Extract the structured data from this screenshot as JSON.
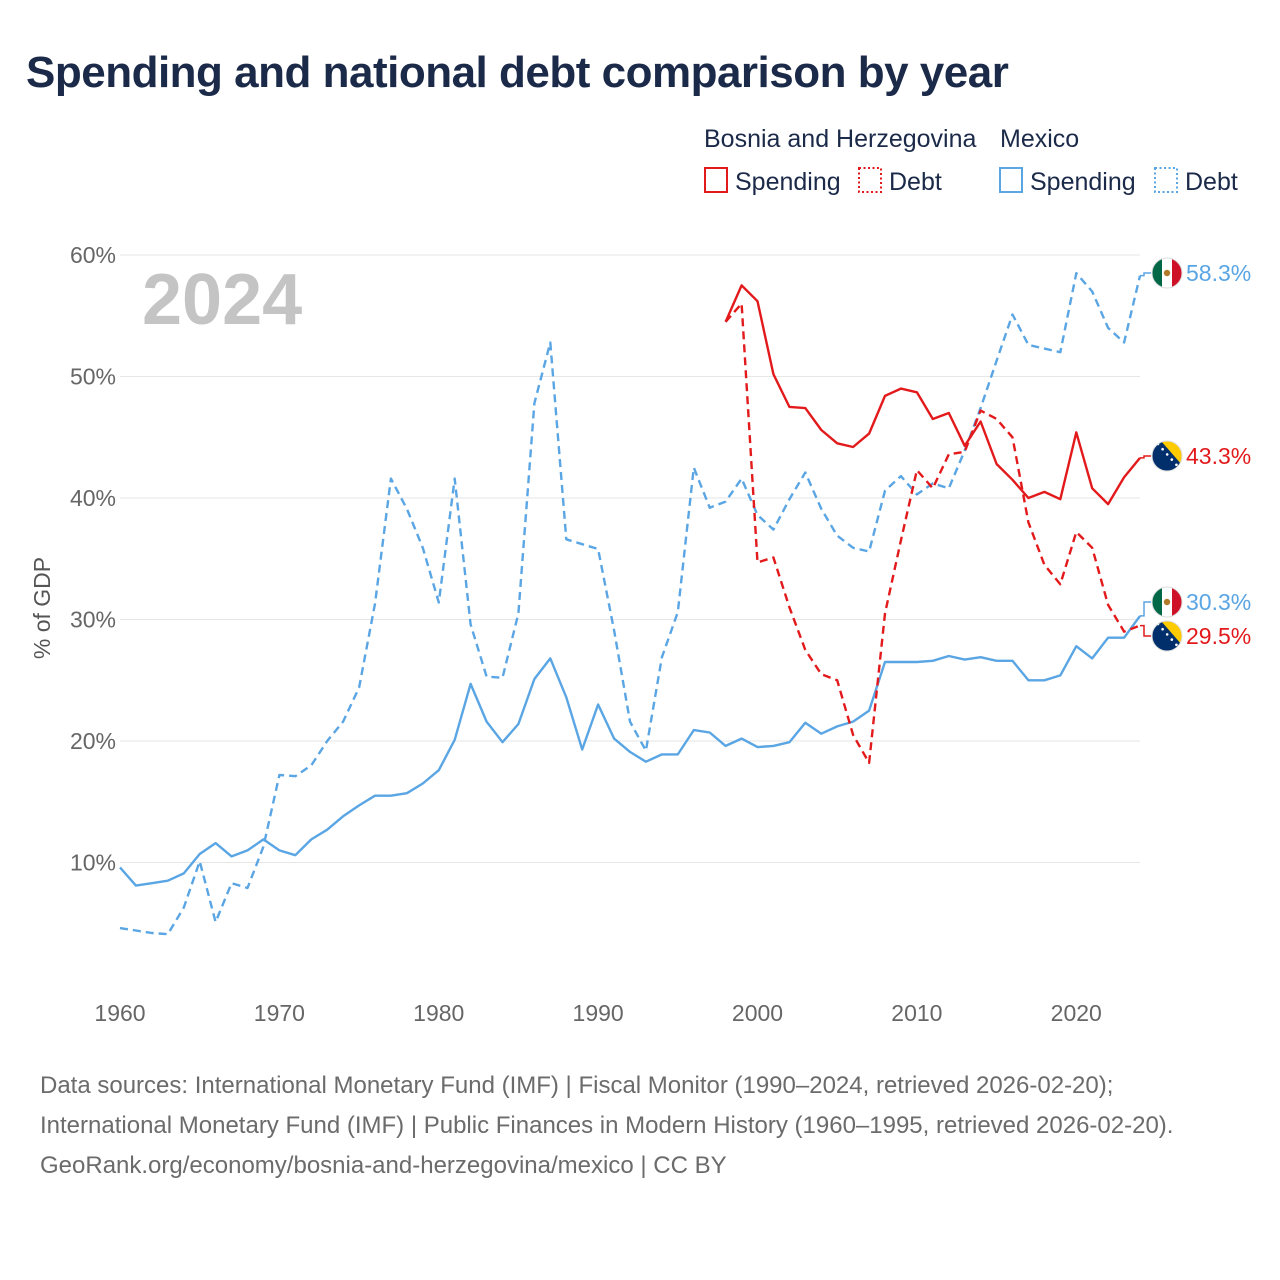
{
  "title": "Spending and national debt comparison by year",
  "year_label": "2024",
  "legend": {
    "group1": "Bosnia and Herzegovina",
    "group2": "Mexico",
    "spending": "Spending",
    "debt": "Debt"
  },
  "footer": {
    "sources": "Data sources: International Monetary Fund (IMF) | Fiscal Monitor (1990–2024, retrieved 2026-02-20); International Monetary Fund (IMF) | Public Finances in Modern History (1960–1995, retrieved 2026-02-20).",
    "credit": "GeoRank.org/economy/bosnia-and-herzegovina/mexico | CC BY"
  },
  "chart_data": {
    "type": "line",
    "ylabel": "% of GDP",
    "xlim": [
      1960,
      2024
    ],
    "ylim": [
      0,
      60
    ],
    "x_ticks": [
      1960,
      1970,
      1980,
      1990,
      2000,
      2010,
      2020
    ],
    "y_ticks": [
      10,
      20,
      30,
      40,
      50,
      60
    ],
    "y_tick_labels": [
      "10%",
      "20%",
      "30%",
      "40%",
      "50%",
      "60%"
    ],
    "colors": {
      "bih": "#e31a1c",
      "mex": "#5aa5e3"
    },
    "series": [
      {
        "name": "Mexico Spending",
        "country": "mex",
        "dash": false,
        "start_year": 1960,
        "end_label": "30.3%",
        "values": [
          9.6,
          8.1,
          8.3,
          8.5,
          9.1,
          10.7,
          11.6,
          10.5,
          11.0,
          11.9,
          11.0,
          10.6,
          11.9,
          12.7,
          13.8,
          14.7,
          15.5,
          15.5,
          15.7,
          16.5,
          17.6,
          20.1,
          24.7,
          21.6,
          19.9,
          21.4,
          25.1,
          26.8,
          23.6,
          19.3,
          23.0,
          20.2,
          19.1,
          18.3,
          18.9,
          18.9,
          20.9,
          20.7,
          19.6,
          20.2,
          19.5,
          19.6,
          19.9,
          21.5,
          20.6,
          21.2,
          21.6,
          22.5,
          26.5,
          26.5,
          26.5,
          26.6,
          27.0,
          26.7,
          26.9,
          26.6,
          26.6,
          25.0,
          25.0,
          25.4,
          27.8,
          26.8,
          28.5,
          28.5,
          30.3
        ]
      },
      {
        "name": "Mexico Debt",
        "country": "mex",
        "dash": true,
        "start_year": 1960,
        "end_label": "58.3%",
        "values": [
          4.6,
          4.4,
          4.2,
          4.1,
          6.3,
          10.1,
          5.1,
          8.3,
          7.9,
          11.3,
          17.2,
          17.1,
          18.0,
          20.0,
          21.6,
          24.4,
          31.3,
          41.6,
          39.1,
          35.9,
          31.4,
          41.6,
          29.6,
          25.3,
          25.2,
          30.5,
          47.8,
          52.8,
          36.6,
          36.2,
          35.8,
          29.1,
          21.6,
          19.2,
          26.9,
          30.6,
          42.5,
          39.2,
          39.7,
          41.6,
          38.6,
          37.4,
          39.9,
          42.1,
          39.1,
          36.9,
          35.9,
          35.6,
          40.6,
          41.8,
          40.3,
          41.2,
          40.8,
          43.9,
          47.4,
          51.3,
          55.1,
          52.6,
          52.3,
          52.0,
          58.5,
          57.0,
          54.0,
          52.8,
          58.3
        ]
      },
      {
        "name": "Bosnia and Herzegovina Spending",
        "country": "bih",
        "dash": false,
        "start_year": 1998,
        "end_label": "43.3%",
        "values": [
          54.5,
          57.5,
          56.2,
          50.2,
          47.5,
          47.4,
          45.6,
          44.5,
          44.2,
          45.3,
          48.4,
          49.0,
          48.7,
          46.5,
          47.0,
          44.3,
          46.3,
          42.8,
          41.5,
          40.0,
          40.5,
          39.9,
          45.4,
          40.8,
          39.5,
          41.7,
          43.3
        ]
      },
      {
        "name": "Bosnia and Herzegovina Debt",
        "country": "bih",
        "dash": true,
        "start_year": 1998,
        "end_label": "29.5%",
        "values": [
          54.5,
          56.0,
          34.7,
          35.1,
          31.0,
          27.5,
          25.5,
          25.0,
          20.5,
          18.2,
          30.5,
          36.5,
          42.3,
          40.8,
          43.6,
          43.8,
          47.2,
          46.5,
          45.0,
          38.0,
          34.5,
          32.9,
          37.2,
          35.9,
          31.2,
          29.0,
          29.5
        ]
      }
    ]
  }
}
